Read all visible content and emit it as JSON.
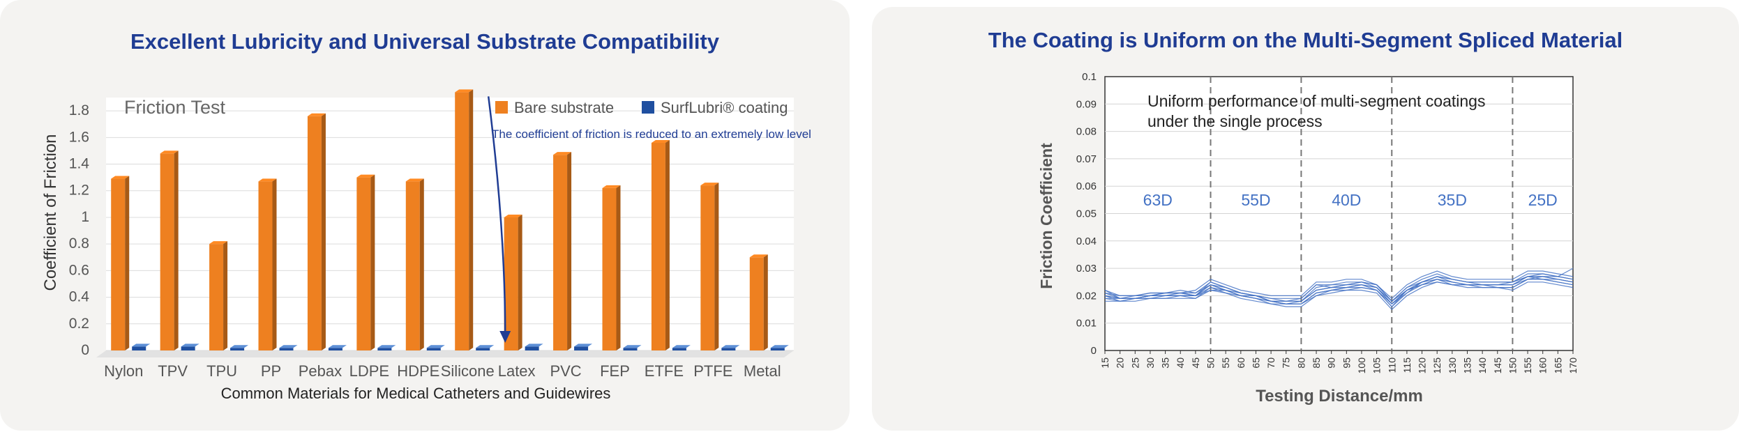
{
  "charts": {
    "left": {
      "heading": "Excellent Lubricity and Universal Substrate Compatibility",
      "inner_title": "Friction Test",
      "annotation": "The coefficient of friction is reduced to an extremely low level"
    },
    "right": {
      "heading": "The Coating is Uniform on the Multi-Segment Spliced Material",
      "annotation_line1": "Uniform performance of multi-segment coatings",
      "annotation_line2": "under the single process"
    }
  },
  "colors": {
    "bare": "#ee8020",
    "coated": "#1f4fa0",
    "heading": "#1f3c93",
    "line": "#4472c4",
    "panel": "#f4f3f1"
  },
  "chart_data": [
    {
      "type": "bar",
      "title": "Friction Test",
      "xlabel": "Common Materials for Medical Catheters and Guidewires",
      "ylabel": "Coefficient of Friction",
      "ylim": [
        0,
        1.9
      ],
      "yticks": [
        "0",
        "0.2",
        "0.4",
        "0.6",
        "0.8",
        "1",
        "1.2",
        "1.4",
        "1.6",
        "1.8"
      ],
      "categories": [
        "Nylon",
        "TPV",
        "TPU",
        "PP",
        "Pebax",
        "LDPE",
        "HDPE",
        "Silicone",
        "Latex",
        "PVC",
        "FEP",
        "ETFE",
        "PTFE",
        "Metal"
      ],
      "series": [
        {
          "name": "Bare substrate",
          "values": [
            1.29,
            1.48,
            0.8,
            1.27,
            1.76,
            1.3,
            1.27,
            1.94,
            1.0,
            1.47,
            1.22,
            1.56,
            1.24,
            0.7
          ]
        },
        {
          "name": "SurfLubri® coating",
          "values": [
            0.04,
            0.04,
            0.03,
            0.03,
            0.03,
            0.03,
            0.03,
            0.03,
            0.04,
            0.04,
            0.03,
            0.03,
            0.03,
            0.03
          ]
        }
      ],
      "grid": true,
      "legend": "top-right"
    },
    {
      "type": "line",
      "title": "",
      "xlabel": "Testing Distance/mm",
      "ylabel": "Friction Coefficient",
      "xlim": [
        15,
        170
      ],
      "ylim": [
        0,
        0.1
      ],
      "yticks": [
        "0",
        "0.01",
        "0.02",
        "0.03",
        "0.04",
        "0.05",
        "0.06",
        "0.07",
        "0.08",
        "0.09",
        "0.1"
      ],
      "xticks": [
        "15",
        "20",
        "25",
        "30",
        "35",
        "40",
        "45",
        "50",
        "55",
        "60",
        "65",
        "70",
        "75",
        "80",
        "85",
        "90",
        "95",
        "100",
        "105",
        "110",
        "115",
        "120",
        "125",
        "130",
        "135",
        "140",
        "145",
        "150",
        "155",
        "160",
        "165",
        "170"
      ],
      "segments": [
        {
          "label": "63D",
          "from": 15,
          "to": 50
        },
        {
          "label": "55D",
          "from": 50,
          "to": 80
        },
        {
          "label": "40D",
          "from": 80,
          "to": 110
        },
        {
          "label": "35D",
          "from": 110,
          "to": 150
        },
        {
          "label": "25D",
          "from": 150,
          "to": 170
        }
      ],
      "dividers": [
        50,
        80,
        110,
        150
      ],
      "x": [
        15,
        20,
        25,
        30,
        35,
        40,
        45,
        50,
        55,
        60,
        65,
        70,
        75,
        80,
        85,
        90,
        95,
        100,
        105,
        110,
        115,
        120,
        125,
        130,
        135,
        140,
        145,
        150,
        155,
        160,
        165,
        170
      ],
      "series": [
        {
          "values": [
            0.02,
            0.019,
            0.019,
            0.02,
            0.02,
            0.02,
            0.02,
            0.024,
            0.022,
            0.02,
            0.019,
            0.018,
            0.018,
            0.018,
            0.022,
            0.023,
            0.024,
            0.024,
            0.023,
            0.017,
            0.022,
            0.025,
            0.027,
            0.025,
            0.024,
            0.024,
            0.024,
            0.024,
            0.027,
            0.027,
            0.026,
            0.025
          ]
        },
        {
          "values": [
            0.021,
            0.019,
            0.02,
            0.02,
            0.021,
            0.021,
            0.021,
            0.025,
            0.023,
            0.021,
            0.02,
            0.019,
            0.019,
            0.019,
            0.024,
            0.024,
            0.025,
            0.025,
            0.023,
            0.018,
            0.023,
            0.026,
            0.028,
            0.026,
            0.025,
            0.025,
            0.025,
            0.025,
            0.028,
            0.028,
            0.027,
            0.026
          ]
        },
        {
          "values": [
            0.019,
            0.018,
            0.018,
            0.019,
            0.019,
            0.019,
            0.019,
            0.023,
            0.021,
            0.019,
            0.018,
            0.017,
            0.017,
            0.017,
            0.021,
            0.022,
            0.022,
            0.023,
            0.022,
            0.016,
            0.021,
            0.024,
            0.025,
            0.024,
            0.023,
            0.023,
            0.023,
            0.023,
            0.026,
            0.026,
            0.025,
            0.024
          ]
        },
        {
          "values": [
            0.022,
            0.02,
            0.02,
            0.021,
            0.021,
            0.021,
            0.022,
            0.026,
            0.024,
            0.022,
            0.021,
            0.02,
            0.02,
            0.02,
            0.025,
            0.025,
            0.026,
            0.026,
            0.024,
            0.019,
            0.024,
            0.027,
            0.029,
            0.027,
            0.026,
            0.026,
            0.026,
            0.026,
            0.029,
            0.029,
            0.028,
            0.027
          ]
        },
        {
          "values": [
            0.018,
            0.018,
            0.019,
            0.019,
            0.019,
            0.02,
            0.02,
            0.022,
            0.021,
            0.02,
            0.019,
            0.017,
            0.016,
            0.016,
            0.02,
            0.021,
            0.022,
            0.022,
            0.021,
            0.015,
            0.02,
            0.023,
            0.025,
            0.024,
            0.024,
            0.023,
            0.023,
            0.022,
            0.025,
            0.025,
            0.024,
            0.023
          ]
        },
        {
          "values": [
            0.02,
            0.018,
            0.019,
            0.019,
            0.02,
            0.02,
            0.02,
            0.023,
            0.022,
            0.021,
            0.02,
            0.018,
            0.017,
            0.017,
            0.021,
            0.022,
            0.023,
            0.024,
            0.022,
            0.017,
            0.022,
            0.024,
            0.026,
            0.025,
            0.024,
            0.024,
            0.024,
            0.024,
            0.026,
            0.026,
            0.025,
            0.024
          ]
        },
        {
          "values": [
            0.021,
            0.02,
            0.02,
            0.021,
            0.021,
            0.022,
            0.021,
            0.024,
            0.023,
            0.021,
            0.02,
            0.019,
            0.018,
            0.018,
            0.023,
            0.024,
            0.024,
            0.025,
            0.024,
            0.018,
            0.023,
            0.025,
            0.027,
            0.026,
            0.025,
            0.025,
            0.025,
            0.025,
            0.027,
            0.028,
            0.027,
            0.026
          ]
        },
        {
          "values": [
            0.019,
            0.019,
            0.019,
            0.02,
            0.02,
            0.02,
            0.019,
            0.022,
            0.022,
            0.02,
            0.019,
            0.018,
            0.017,
            0.017,
            0.02,
            0.022,
            0.023,
            0.023,
            0.022,
            0.016,
            0.022,
            0.024,
            0.026,
            0.024,
            0.024,
            0.024,
            0.023,
            0.023,
            0.026,
            0.027,
            0.026,
            0.025
          ]
        },
        {
          "values": [
            0.022,
            0.019,
            0.019,
            0.02,
            0.021,
            0.021,
            0.02,
            0.025,
            0.023,
            0.021,
            0.02,
            0.018,
            0.018,
            0.019,
            0.024,
            0.023,
            0.024,
            0.025,
            0.024,
            0.018,
            0.022,
            0.025,
            0.027,
            0.026,
            0.025,
            0.024,
            0.024,
            0.025,
            0.027,
            0.027,
            0.027,
            0.03
          ]
        },
        {
          "values": [
            0.02,
            0.019,
            0.019,
            0.02,
            0.02,
            0.021,
            0.02,
            0.024,
            0.022,
            0.02,
            0.02,
            0.018,
            0.017,
            0.018,
            0.022,
            0.023,
            0.023,
            0.024,
            0.023,
            0.017,
            0.021,
            0.025,
            0.026,
            0.025,
            0.024,
            0.024,
            0.024,
            0.024,
            0.027,
            0.026,
            0.026,
            0.025
          ]
        }
      ]
    }
  ]
}
